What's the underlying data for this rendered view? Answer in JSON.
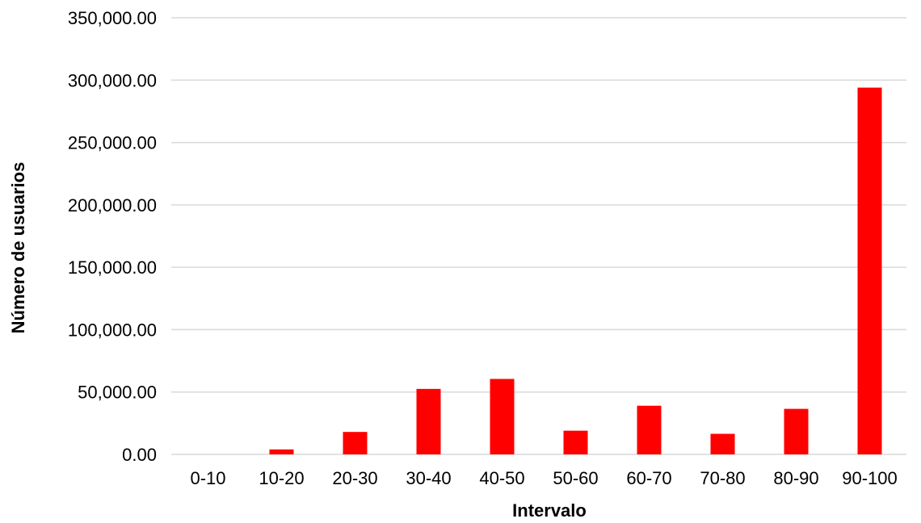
{
  "chart_data": {
    "type": "bar",
    "title": "",
    "xlabel": "Intervalo",
    "ylabel": "Número de usuarios",
    "categories": [
      "0-10",
      "10-20",
      "20-30",
      "30-40",
      "40-50",
      "50-60",
      "60-70",
      "70-80",
      "80-90",
      "90-100"
    ],
    "values": [
      0,
      4000,
      18000,
      52500,
      60500,
      19000,
      39000,
      16500,
      36500,
      294000
    ],
    "ylim": [
      0,
      350000
    ],
    "yticks": [
      "0.00",
      "50,000.00",
      "100,000.00",
      "150,000.00",
      "200,000.00",
      "250,000.00",
      "300,000.00",
      "350,000.00"
    ],
    "grid": true,
    "legend": "none",
    "colors": {
      "bar": "#ff0000",
      "grid": "#d9d9d9"
    }
  }
}
